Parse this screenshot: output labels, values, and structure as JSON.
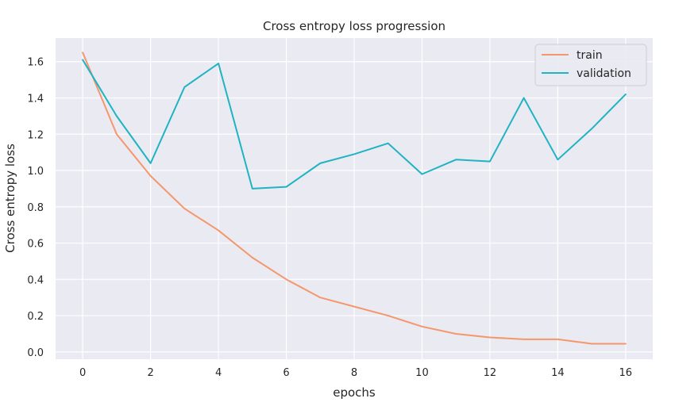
{
  "chart_data": {
    "type": "line",
    "title": "Cross entropy loss progression",
    "xlabel": "epochs",
    "ylabel": "Cross entropy loss",
    "x": [
      0,
      1,
      2,
      3,
      4,
      5,
      6,
      7,
      8,
      9,
      10,
      11,
      12,
      13,
      14,
      15,
      16
    ],
    "xlim": [
      -0.8,
      16.8
    ],
    "ylim": [
      -0.04,
      1.73
    ],
    "xticks": [
      0,
      2,
      4,
      6,
      8,
      10,
      12,
      14,
      16
    ],
    "yticks": [
      0.0,
      0.2,
      0.4,
      0.6,
      0.8,
      1.0,
      1.2,
      1.4,
      1.6
    ],
    "grid": true,
    "legend_position": "top-right",
    "background": "#eaeaf2",
    "series": [
      {
        "name": "train",
        "color": "#f4976c",
        "values": [
          1.65,
          1.2,
          0.97,
          0.79,
          0.67,
          0.52,
          0.4,
          0.3,
          0.25,
          0.2,
          0.14,
          0.1,
          0.08,
          0.07,
          0.07,
          0.045,
          0.045
        ]
      },
      {
        "name": "validation",
        "color": "#1fb3c3",
        "values": [
          1.61,
          1.3,
          1.04,
          1.46,
          1.59,
          0.9,
          0.91,
          1.04,
          1.09,
          1.15,
          0.98,
          1.06,
          1.05,
          1.4,
          1.06,
          1.23,
          1.42
        ]
      }
    ]
  }
}
